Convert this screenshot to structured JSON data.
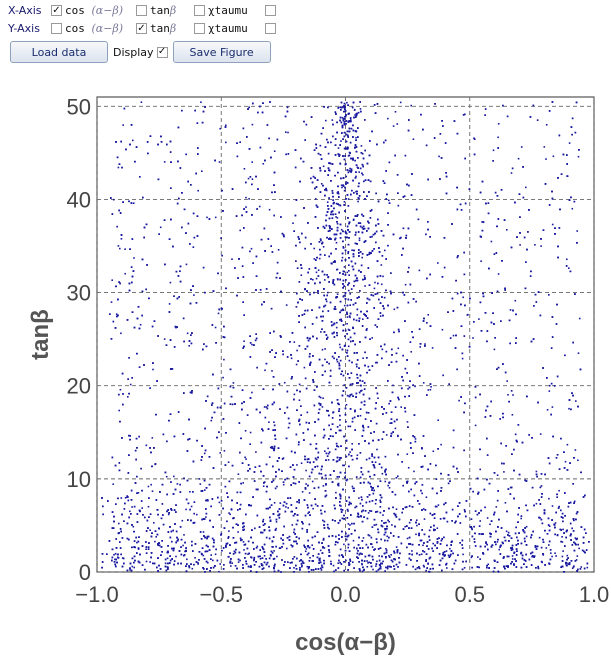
{
  "x_axis": {
    "label": "X-Axis",
    "options": [
      {
        "name": "cos",
        "suffix": "(α−β)",
        "checked": true
      },
      {
        "name": "tan",
        "suffix": "β",
        "checked": false
      },
      {
        "name": "χtaumu",
        "suffix": "",
        "checked": false
      },
      {
        "name": "",
        "suffix": "",
        "checked": false
      }
    ]
  },
  "y_axis": {
    "label": "Y-Axis",
    "options": [
      {
        "name": "cos",
        "suffix": "(α−β)",
        "checked": false
      },
      {
        "name": "tan",
        "suffix": "β",
        "checked": true
      },
      {
        "name": "χtaumu",
        "suffix": "",
        "checked": false
      },
      {
        "name": "",
        "suffix": "",
        "checked": false
      }
    ]
  },
  "buttons": {
    "load": "Load data",
    "display": "Display",
    "display_checked": true,
    "save": "Save Figure"
  },
  "chart_data": {
    "type": "scatter",
    "xlabel": "cos(α−β)",
    "ylabel": "tanβ",
    "xlim": [
      -1.0,
      1.0
    ],
    "ylim": [
      0,
      51
    ],
    "x_ticks": [
      "−1.0",
      "−0.5",
      "0.0",
      "0.5",
      "1.0"
    ],
    "x_tick_values": [
      -1.0,
      -0.5,
      0.0,
      0.5,
      1.0
    ],
    "y_ticks": [
      "0",
      "10",
      "20",
      "30",
      "40",
      "50"
    ],
    "y_tick_values": [
      0,
      10,
      20,
      30,
      40,
      50
    ],
    "grid": true,
    "point_color": "#1a1aa0",
    "approx_point_count": 9000,
    "distribution": "Dense vertical band centred at x = 0 across all y; density increases toward small y (tanβ < 5) across the full x range"
  }
}
